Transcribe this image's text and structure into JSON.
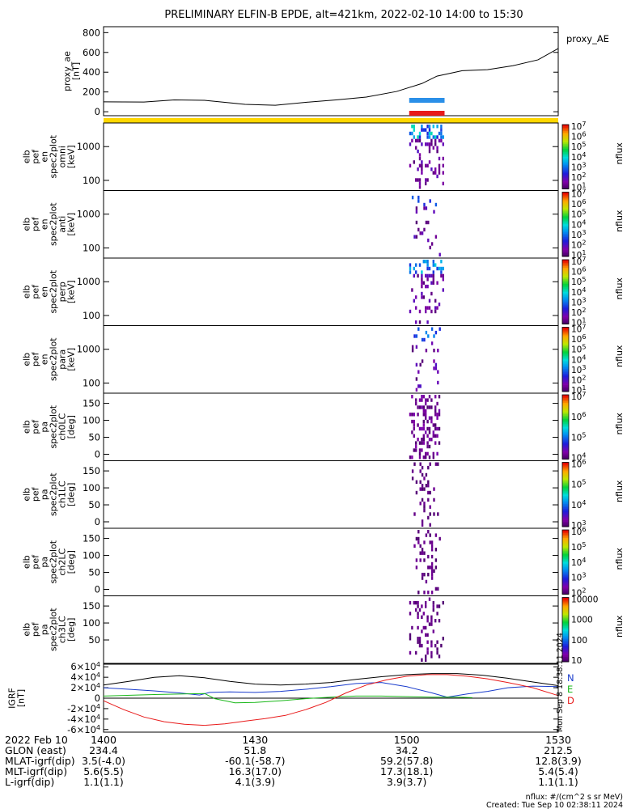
{
  "title": "PRELIMINARY ELFIN-B EPDE, alt=421km, 2022-02-10 14:00 to 15:30",
  "chart_data": {
    "type": "line+spectrogram",
    "time_range": [
      "14:00",
      "15:30"
    ],
    "x_tick_labels": [
      "1400",
      "1430",
      "1500",
      "1530"
    ],
    "proxy_ae": {
      "legend": "proxy_AE",
      "ylabel": "proxy_ae\n[nT]",
      "yticks": [
        "0",
        "200",
        "400",
        "600",
        "800"
      ],
      "ylim": [
        -40,
        860
      ],
      "times_min": [
        0,
        8,
        14,
        20,
        28,
        34,
        40,
        46,
        52,
        58,
        63,
        66,
        71,
        76,
        81,
        86,
        90
      ],
      "values": [
        100,
        98,
        120,
        115,
        75,
        65,
        95,
        120,
        148,
        205,
        285,
        360,
        415,
        425,
        465,
        525,
        640
      ]
    },
    "flags": {
      "blue_bar": {
        "start_min": 60.5,
        "end_min": 67.5,
        "color": "#2a8fe8"
      },
      "red_bar": {
        "start_min": 60.5,
        "end_min": 67.5,
        "color": "#e81a1a"
      },
      "yellow_bar": {
        "start_min": 0,
        "end_min": 90,
        "color": "#ffd700"
      }
    },
    "spectrogram_panels": [
      {
        "ylabel": "elb\npef\nen\nspec2plot\nomni\n[keV]",
        "yticks": [
          "100",
          "1000"
        ],
        "cbar_label": "nflux",
        "cbar_ticks": [
          "10^1",
          "10^2",
          "10^3",
          "10^4",
          "10^5",
          "10^6",
          "10^7"
        ],
        "activity": [
          60.5,
          67.5
        ],
        "intensity": 1.0
      },
      {
        "ylabel": "elb\npef\nen\nspec2plot\nanti\n[keV]",
        "yticks": [
          "100",
          "1000"
        ],
        "cbar_label": "nflux",
        "cbar_ticks": [
          "10^1",
          "10^2",
          "10^3",
          "10^4",
          "10^5",
          "10^6",
          "10^7"
        ],
        "activity": [
          61,
          67
        ],
        "intensity": 0.35
      },
      {
        "ylabel": "elb\npef\nen\nspec2plot\nperp\n[keV]",
        "yticks": [
          "100",
          "1000"
        ],
        "cbar_label": "nflux",
        "cbar_ticks": [
          "10^1",
          "10^2",
          "10^3",
          "10^4",
          "10^5",
          "10^6",
          "10^7"
        ],
        "activity": [
          60.5,
          67.5
        ],
        "intensity": 0.8
      },
      {
        "ylabel": "elb\npef\nen\nspec2plot\npara\n[keV]",
        "yticks": [
          "100",
          "1000"
        ],
        "cbar_label": "nflux",
        "cbar_ticks": [
          "10^1",
          "10^2",
          "10^3",
          "10^4",
          "10^5",
          "10^6",
          "10^7"
        ],
        "activity": [
          61,
          67
        ],
        "intensity": 0.45
      },
      {
        "ylabel": "elb\npef\npa\nspec2plot\nch0LC\n[deg]",
        "yticks": [
          "0",
          "50",
          "100",
          "150"
        ],
        "cbar_label": "nflux",
        "cbar_ticks": [
          "10^4",
          "10^5",
          "10^6",
          "10^7"
        ],
        "activity": [
          60.5,
          67
        ],
        "intensity": 0.9
      },
      {
        "ylabel": "elb\npef\npa\nspec2plot\nch1LC\n[deg]",
        "yticks": [
          "0",
          "50",
          "100",
          "150"
        ],
        "cbar_label": "nflux",
        "cbar_ticks": [
          "10^3",
          "10^4",
          "10^5",
          "10^6"
        ],
        "activity": [
          61,
          66.5
        ],
        "intensity": 0.5
      },
      {
        "ylabel": "elb\npef\npa\nspec2plot\nch2LC\n[deg]",
        "yticks": [
          "0",
          "50",
          "100",
          "150"
        ],
        "cbar_label": "nflux",
        "cbar_ticks": [
          "10^2",
          "10^3",
          "10^4",
          "10^5",
          "10^6"
        ],
        "activity": [
          61,
          67
        ],
        "intensity": 0.5
      },
      {
        "ylabel": "elb\npef\npa\nspec2plot\nch3LC\n[deg]",
        "yticks": [
          "50",
          "100",
          "150"
        ],
        "cbar_label": "nflux",
        "cbar_ticks": [
          "10",
          "100",
          "1000",
          "10000"
        ],
        "activity": [
          60.5,
          67.5
        ],
        "intensity": 0.6
      }
    ],
    "igrf": {
      "ylabel": "IGRF\n[nT]",
      "yticks": [
        "-6×10^4",
        "-4×10^4",
        "-2×10^4",
        "0",
        "2×10^4",
        "4×10^4",
        "6×10^4"
      ],
      "ylim": [
        -65000,
        65000
      ],
      "legend": [
        {
          "name": "N",
          "color": "#1a3ccc"
        },
        {
          "name": "E",
          "color": "#1ab81a"
        },
        {
          "name": "D",
          "color": "#e81a1a"
        }
      ],
      "series": [
        {
          "name": "total",
          "color": "#000000",
          "times_min": [
            0,
            5,
            10,
            15,
            20,
            25,
            30,
            35,
            40,
            45,
            50,
            55,
            60,
            65,
            70,
            75,
            80,
            85,
            90
          ],
          "values": [
            25000,
            32000,
            40000,
            43000,
            39000,
            32000,
            27000,
            25000,
            27000,
            30000,
            36000,
            41000,
            45000,
            47000,
            47000,
            44000,
            38000,
            31000,
            24000
          ]
        },
        {
          "name": "N",
          "color": "#1a3ccc",
          "times_min": [
            0,
            5,
            10,
            15,
            19,
            21,
            25,
            30,
            35,
            40,
            45,
            50,
            55,
            60,
            65,
            68,
            72,
            76,
            80,
            85,
            90
          ],
          "values": [
            20000,
            17000,
            14000,
            10000,
            6000,
            11000,
            12000,
            11000,
            13000,
            17000,
            22000,
            28000,
            30000,
            22000,
            10000,
            2000,
            8000,
            13000,
            20000,
            23000,
            22000
          ]
        },
        {
          "name": "E",
          "color": "#1ab81a",
          "times_min": [
            0,
            10,
            20,
            22,
            26,
            30,
            35,
            40,
            45,
            50,
            55,
            60,
            65,
            70,
            73
          ],
          "values": [
            4000,
            7000,
            9000,
            -1000,
            -9000,
            -8000,
            -5000,
            -1000,
            2000,
            4000,
            4000,
            3000,
            2000,
            2000,
            1000
          ]
        },
        {
          "name": "D",
          "color": "#e81a1a",
          "times_min": [
            0,
            4,
            8,
            12,
            16,
            20,
            24,
            28,
            32,
            36,
            40,
            44,
            48,
            52,
            56,
            60,
            64,
            68,
            72,
            76,
            80,
            85,
            90
          ],
          "values": [
            -5000,
            -22000,
            -36000,
            -45000,
            -50000,
            -52000,
            -49000,
            -44000,
            -39000,
            -33000,
            -22000,
            -8000,
            10000,
            25000,
            35000,
            42000,
            45000,
            45000,
            42000,
            37000,
            30000,
            20000,
            5000
          ]
        }
      ],
      "vertical_text": "Mon Sep  8 18:38:11 2024"
    },
    "ephemeris": {
      "row_labels": [
        "2022 Feb 10",
        "GLON (east)",
        "MLAT-igrf(dip)",
        "MLT-igrf(dip)",
        "L-igrf(dip)"
      ],
      "columns": [
        {
          "time": "1400",
          "values": [
            "234.4",
            "3.5(-4.0)",
            "5.6(5.5)",
            "1.1(1.1)"
          ]
        },
        {
          "time": "1430",
          "values": [
            "51.8",
            "-60.1(-58.7)",
            "16.3(17.0)",
            "4.1(3.9)"
          ]
        },
        {
          "time": "1500",
          "values": [
            "34.2",
            "59.2(57.8)",
            "17.3(18.1)",
            "3.9(3.7)"
          ]
        },
        {
          "time": "1530",
          "values": [
            "212.5",
            "12.8(3.9)",
            "5.4(5.4)",
            "1.1(1.1)"
          ]
        }
      ]
    },
    "footer": {
      "units": "nflux: #/(cm^2 s sr MeV)",
      "created": "Created: Tue Sep 10 02:38:11 2024"
    }
  }
}
